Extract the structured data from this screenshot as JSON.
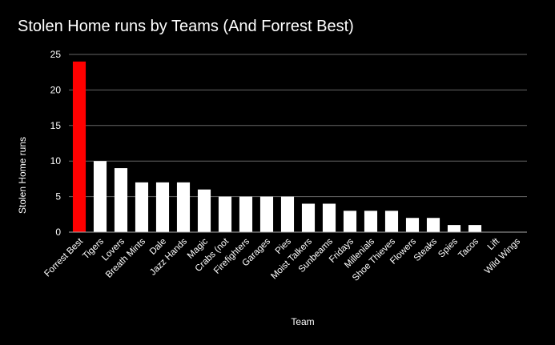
{
  "chart_data": {
    "type": "bar",
    "title": "Stolen Home runs by Teams (And Forrest Best)",
    "xlabel": "Team",
    "ylabel": "Stolen Home runs",
    "ylim": [
      0,
      25
    ],
    "yticks": [
      "0",
      "5",
      "10",
      "15",
      "20",
      "25"
    ],
    "grid": true,
    "legend": "none",
    "categories": [
      "Forrest Best",
      "Tigers",
      "Lovers",
      "Breath Mints",
      "Dale",
      "Jazz Hands",
      "Magic",
      "Crabs (not",
      "Firefighters",
      "Garages",
      "Pies",
      "Moist Talkers",
      "Sunbeams",
      "Fridays",
      "Millenials",
      "Shoe Thieves",
      "Flowers",
      "Steaks",
      "Spies",
      "Tacos",
      "Lift",
      "Wild Wings"
    ],
    "values": [
      24,
      10,
      9,
      7,
      7,
      7,
      6,
      5,
      5,
      5,
      5,
      4,
      4,
      3,
      3,
      3,
      2,
      2,
      1,
      1,
      0,
      0
    ],
    "colors": {
      "highlight": "#ff0000",
      "bar": "#ffffff",
      "background": "#000000",
      "grid": "#666666",
      "text": "#ffffff"
    }
  }
}
